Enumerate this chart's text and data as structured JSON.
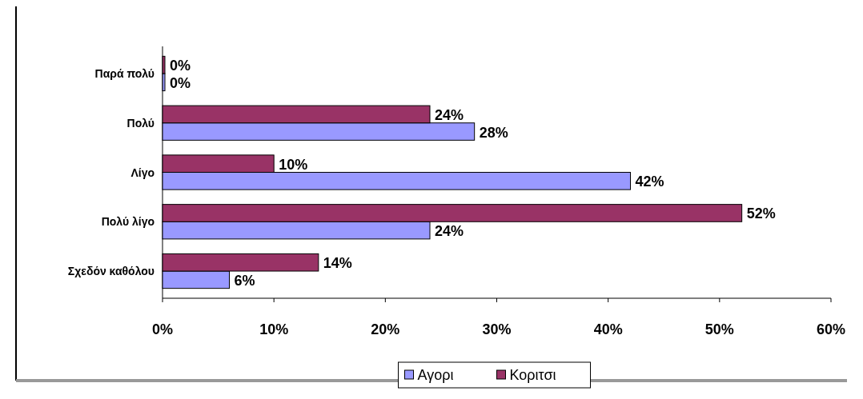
{
  "chart_data": {
    "type": "bar",
    "orientation": "horizontal",
    "categories": [
      "Παρά πολύ",
      "Πολύ",
      "Λίγο",
      "Πολύ λίγο",
      "Σχεδόν καθόλου"
    ],
    "series": [
      {
        "name": "Αγορι",
        "color": "#9999ff",
        "values": [
          0,
          28,
          42,
          24,
          6
        ],
        "value_labels": [
          "0%",
          "28%",
          "42%",
          "24%",
          "6%"
        ]
      },
      {
        "name": "Κοριτσι",
        "color": "#993366",
        "values": [
          0,
          24,
          10,
          52,
          14
        ],
        "value_labels": [
          "0%",
          "24%",
          "10%",
          "52%",
          "14%"
        ]
      }
    ],
    "xlim": [
      0,
      60
    ],
    "xticks": [
      {
        "value": 0,
        "label": "0%"
      },
      {
        "value": 10,
        "label": "10%"
      },
      {
        "value": 20,
        "label": "20%"
      },
      {
        "value": 30,
        "label": "30%"
      },
      {
        "value": 40,
        "label": "40%"
      },
      {
        "value": 50,
        "label": "50%"
      },
      {
        "value": 60,
        "label": "60%"
      }
    ],
    "legend": "bottom"
  }
}
